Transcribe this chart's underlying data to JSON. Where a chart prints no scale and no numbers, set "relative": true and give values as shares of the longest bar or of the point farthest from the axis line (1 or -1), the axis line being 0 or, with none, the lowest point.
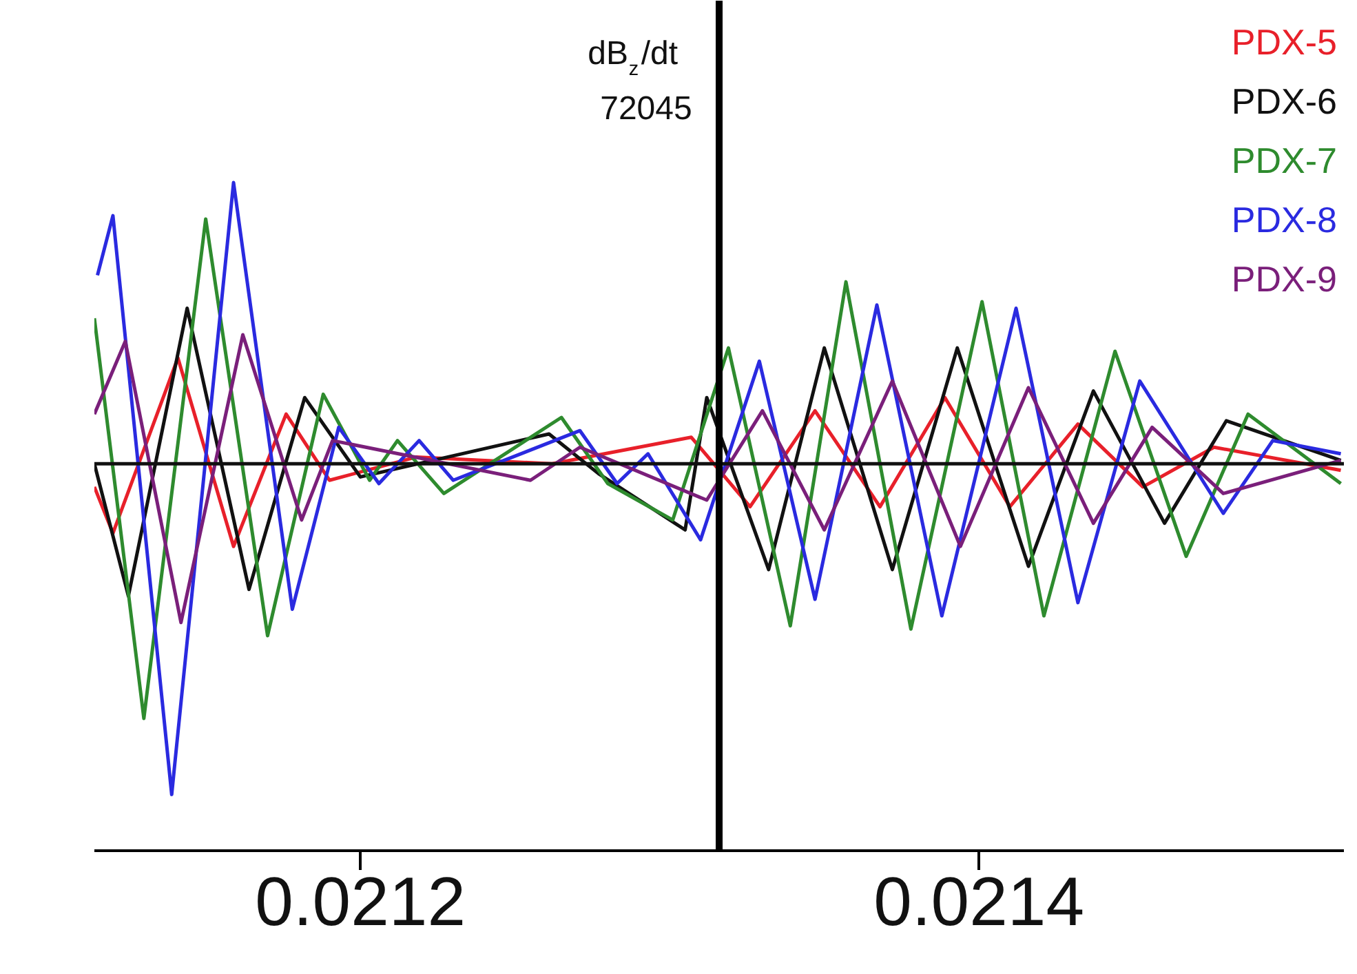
{
  "chart_data": {
    "type": "line",
    "relative": true,
    "xlim": [
      0.021114,
      0.021518
    ],
    "xticks": [
      0.0212,
      0.0214
    ],
    "annotations": [
      "dB$_{z}$/dt",
      "72045"
    ],
    "ref_lines": [
      {
        "axis": "y",
        "value": 0,
        "color": "#111111"
      },
      {
        "axis": "x",
        "value": 0.021316,
        "color": "#000000"
      }
    ],
    "legend": "top right",
    "grid": false,
    "marker": "none",
    "line_style": "solid",
    "series": [
      {
        "name": "PDX-5",
        "color": "#e8202a",
        "x": [
          0.021114,
          0.02112,
          0.021141,
          0.021159,
          0.021176,
          0.02119,
          0.021218,
          0.021262,
          0.021307,
          0.021326,
          0.021347,
          0.021368,
          0.021389,
          0.02141,
          0.021432,
          0.021453,
          0.021476,
          0.021517
        ],
        "values": [
          -0.07,
          -0.21,
          0.32,
          -0.25,
          0.15,
          -0.05,
          0.02,
          0.0,
          0.08,
          -0.13,
          0.16,
          -0.13,
          0.2,
          -0.13,
          0.12,
          -0.07,
          0.05,
          -0.02
        ]
      },
      {
        "name": "PDX-6",
        "color": "#111111",
        "x": [
          0.021114,
          0.021125,
          0.021144,
          0.021164,
          0.021182,
          0.0212,
          0.021261,
          0.021277,
          0.021305,
          0.021312,
          0.021332,
          0.02135,
          0.021372,
          0.021393,
          0.021416,
          0.021437,
          0.02146,
          0.02148,
          0.021517
        ],
        "values": [
          0.0,
          -0.4,
          0.47,
          -0.38,
          0.2,
          -0.04,
          0.09,
          -0.03,
          -0.2,
          0.2,
          -0.32,
          0.35,
          -0.32,
          0.35,
          -0.31,
          0.22,
          -0.18,
          0.13,
          0.01
        ]
      },
      {
        "name": "PDX-7",
        "color": "#2e8b2e",
        "x": [
          0.021114,
          0.02113,
          0.02115,
          0.02117,
          0.021188,
          0.021203,
          0.021212,
          0.021227,
          0.021265,
          0.02128,
          0.021301,
          0.021319,
          0.021339,
          0.021357,
          0.021378,
          0.021401,
          0.021421,
          0.021444,
          0.021467,
          0.021487,
          0.021517
        ],
        "values": [
          0.44,
          -0.77,
          0.74,
          -0.52,
          0.21,
          -0.05,
          0.07,
          -0.09,
          0.14,
          -0.06,
          -0.17,
          0.35,
          -0.49,
          0.55,
          -0.5,
          0.49,
          -0.46,
          0.34,
          -0.28,
          0.15,
          -0.06
        ]
      },
      {
        "name": "PDX-8",
        "color": "#2a2ae0",
        "x": [
          0.021115,
          0.02112,
          0.021139,
          0.021159,
          0.021178,
          0.021193,
          0.021206,
          0.021219,
          0.02123,
          0.021271,
          0.021283,
          0.021293,
          0.02131,
          0.021329,
          0.021347,
          0.021367,
          0.021388,
          0.021412,
          0.021432,
          0.021452,
          0.021479,
          0.021495,
          0.021517
        ],
        "values": [
          0.57,
          0.75,
          -1.0,
          0.85,
          -0.44,
          0.11,
          -0.06,
          0.07,
          -0.05,
          0.1,
          -0.06,
          0.03,
          -0.23,
          0.31,
          -0.41,
          0.48,
          -0.46,
          0.47,
          -0.42,
          0.25,
          -0.15,
          0.07,
          0.03
        ]
      },
      {
        "name": "PDX-9",
        "color": "#7a1f7a",
        "x": [
          0.021114,
          0.021124,
          0.021142,
          0.021162,
          0.021181,
          0.021191,
          0.021255,
          0.021271,
          0.021312,
          0.02133,
          0.02135,
          0.021372,
          0.021394,
          0.021416,
          0.021437,
          0.021456,
          0.021479,
          0.021517
        ],
        "values": [
          0.15,
          0.37,
          -0.48,
          0.39,
          -0.17,
          0.07,
          -0.05,
          0.05,
          -0.11,
          0.16,
          -0.2,
          0.25,
          -0.25,
          0.23,
          -0.18,
          0.11,
          -0.09,
          0.01
        ]
      }
    ]
  }
}
